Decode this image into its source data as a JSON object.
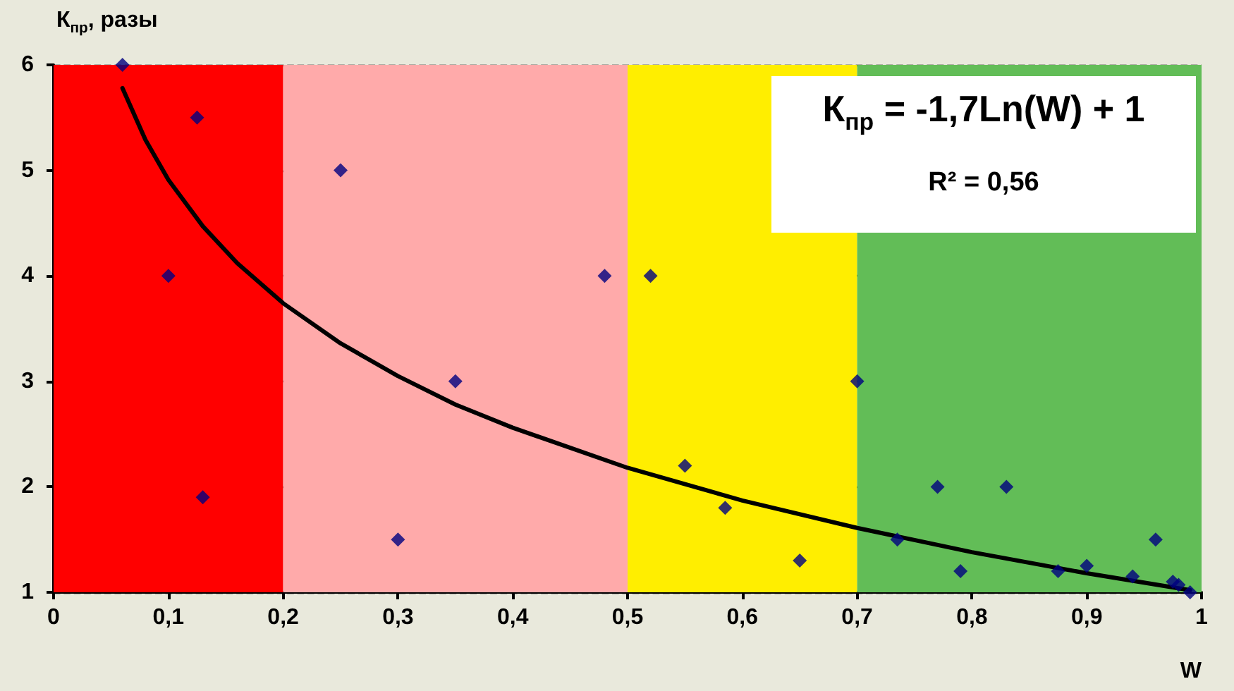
{
  "chart_data": {
    "type": "scatter",
    "ylabel": "К$_{пр}$, разы",
    "xlabel": "W",
    "annotations": [
      "К$_{пр}$ = -1,7Ln(W) + 1",
      "R² = 0,56"
    ],
    "xlim": [
      0,
      1
    ],
    "xticks": [
      0,
      {
        "value": 0.1,
        "label": "0,1"
      },
      {
        "value": 0.2,
        "label": "0,2"
      },
      {
        "value": 0.3,
        "label": "0,3"
      },
      {
        "value": 0.4,
        "label": "0,4"
      },
      {
        "value": 0.5,
        "label": "0,5"
      },
      {
        "value": 0.6,
        "label": "0,6"
      },
      {
        "value": 0.7,
        "label": "0,7"
      },
      {
        "value": 0.8,
        "label": "0,8"
      },
      {
        "value": 0.9,
        "label": "0,9"
      },
      1
    ],
    "ylim": [
      1,
      6
    ],
    "yticks": [
      1,
      2,
      3,
      4,
      5,
      6
    ],
    "grid": "y",
    "marker": "diamond",
    "bands": [
      {
        "axis": "x",
        "from": 0,
        "to": 0.2,
        "color": "#ff0000"
      },
      {
        "axis": "x",
        "from": 0.2,
        "to": 0.5,
        "color": "#ffaaaa"
      },
      {
        "axis": "x",
        "from": 0.5,
        "to": 0.7,
        "color": "#ffee00"
      },
      {
        "axis": "x",
        "from": 0.7,
        "to": 1,
        "color": "#62bd57"
      }
    ],
    "series": [
      {
        "color": "#000080",
        "x": [
          0.06,
          0.1,
          0.125,
          0.13,
          0.25,
          0.3,
          0.35,
          0.48,
          0.52,
          0.55,
          0.585,
          0.65,
          0.7,
          0.735,
          0.77,
          0.79,
          0.83,
          0.875,
          0.9,
          0.94,
          0.96,
          0.975,
          0.98,
          0.99
        ],
        "values": [
          6,
          4,
          5.5,
          1.9,
          5,
          1.5,
          3,
          4,
          4,
          2.2,
          1.8,
          1.3,
          3,
          1.5,
          2,
          1.2,
          2,
          1.2,
          1.25,
          1.15,
          1.5,
          1.1,
          1.07,
          1.0
        ]
      },
      {
        "type": "line",
        "color": "#000000",
        "line_style": "solid",
        "marker": "none",
        "x": [
          0.06,
          0.08,
          0.1,
          0.13,
          0.16,
          0.2,
          0.25,
          0.3,
          0.35,
          0.4,
          0.5,
          0.6,
          0.7,
          0.8,
          0.9,
          0.99
        ],
        "values": [
          5.78,
          5.29,
          4.91,
          4.47,
          4.12,
          3.74,
          3.36,
          3.05,
          2.78,
          2.56,
          2.18,
          1.87,
          1.61,
          1.38,
          1.18,
          1.02
        ]
      }
    ]
  }
}
